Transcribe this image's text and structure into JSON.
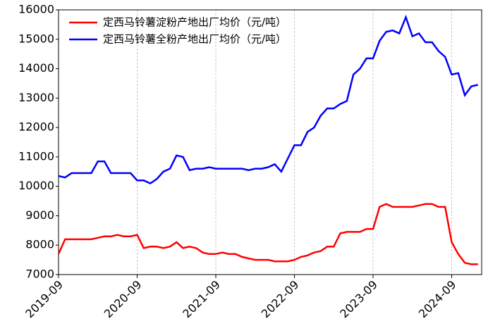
{
  "chart_data": {
    "type": "line",
    "x": [
      "2019-09",
      "2019-10",
      "2019-11",
      "2019-12",
      "2020-01",
      "2020-02",
      "2020-03",
      "2020-04",
      "2020-05",
      "2020-06",
      "2020-07",
      "2020-08",
      "2020-09",
      "2020-10",
      "2020-11",
      "2020-12",
      "2021-01",
      "2021-02",
      "2021-03",
      "2021-04",
      "2021-05",
      "2021-06",
      "2021-07",
      "2021-08",
      "2021-09",
      "2021-10",
      "2021-11",
      "2021-12",
      "2022-01",
      "2022-02",
      "2022-03",
      "2022-04",
      "2022-05",
      "2022-06",
      "2022-07",
      "2022-08",
      "2022-09",
      "2022-10",
      "2022-11",
      "2022-12",
      "2023-01",
      "2023-02",
      "2023-03",
      "2023-04",
      "2023-05",
      "2023-06",
      "2023-07",
      "2023-08",
      "2023-09",
      "2023-10",
      "2023-11",
      "2023-12",
      "2024-01",
      "2024-02",
      "2024-03",
      "2024-04",
      "2024-05",
      "2024-06",
      "2024-07",
      "2024-08",
      "2024-09",
      "2024-10",
      "2024-11",
      "2024-12",
      "2025-01"
    ],
    "xticks": [
      "2019-09",
      "2020-09",
      "2021-09",
      "2022-09",
      "2023-09",
      "2024-09"
    ],
    "series": [
      {
        "name": "定西马铃薯淀粉产地出厂均价（元/吨）",
        "color": "#ff0000",
        "values": [
          7700,
          8200,
          8200,
          8200,
          8200,
          8200,
          8250,
          8300,
          8300,
          8350,
          8300,
          8300,
          8350,
          7900,
          7950,
          7950,
          7900,
          7950,
          8100,
          7900,
          7950,
          7900,
          7750,
          7700,
          7700,
          7750,
          7700,
          7700,
          7600,
          7550,
          7500,
          7500,
          7500,
          7450,
          7450,
          7450,
          7500,
          7600,
          7650,
          7750,
          7800,
          7950,
          7950,
          8400,
          8450,
          8450,
          8450,
          8550,
          8550,
          9300,
          9400,
          9300,
          9300,
          9300,
          9300,
          9350,
          9400,
          9400,
          9300,
          9300,
          8100,
          7700,
          7400,
          7350,
          7350
        ]
      },
      {
        "name": "定西马铃薯全粉产地出厂均价（元/吨）",
        "color": "#0000ff",
        "values": [
          10350,
          10300,
          10450,
          10450,
          10450,
          10450,
          10850,
          10850,
          10450,
          10450,
          10450,
          10450,
          10200,
          10200,
          10100,
          10250,
          10500,
          10600,
          11050,
          11000,
          10550,
          10600,
          10600,
          10650,
          10600,
          10600,
          10600,
          10600,
          10600,
          10550,
          10600,
          10600,
          10650,
          10750,
          10500,
          10950,
          11400,
          11400,
          11850,
          12000,
          12400,
          12650,
          12650,
          12800,
          12900,
          13800,
          14000,
          14350,
          14350,
          14950,
          15250,
          15300,
          15200,
          15750,
          15100,
          15200,
          14900,
          14900,
          14600,
          14400,
          13800,
          13850,
          13100,
          13400,
          13450
        ]
      }
    ],
    "ylim": [
      7000,
      16000
    ],
    "yticks": [
      7000,
      8000,
      9000,
      10000,
      11000,
      12000,
      13000,
      14000,
      15000,
      16000
    ],
    "xgrid": true,
    "legend": "upper left"
  }
}
